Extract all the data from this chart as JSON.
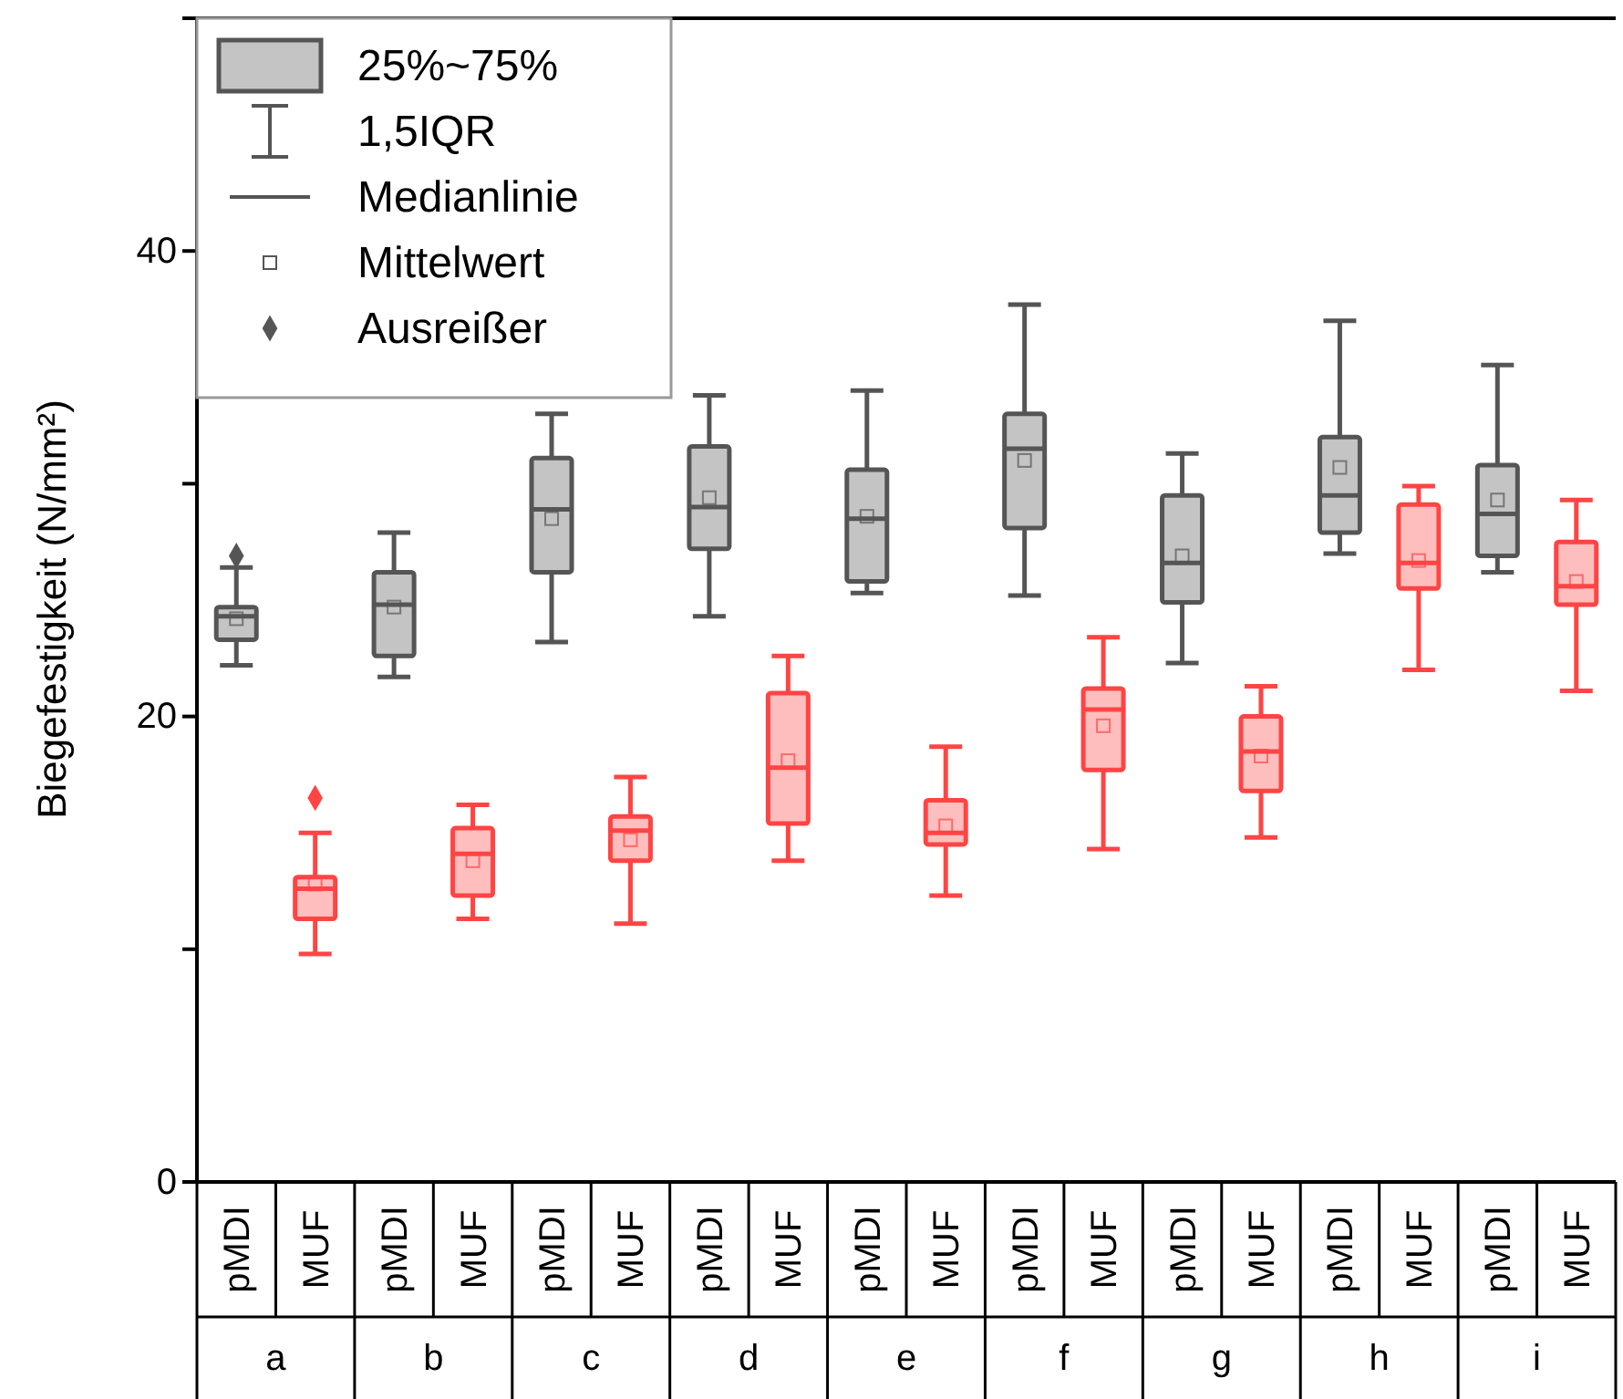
{
  "chart_data": {
    "type": "box",
    "ylabel": "Biegefestigkeit (N/mm²)",
    "ylim": [
      0,
      50
    ],
    "yticks": [
      0,
      {
        "value": 10,
        "label": null
      },
      20,
      {
        "value": 30,
        "label": null
      },
      40
    ],
    "categories": [
      "a",
      "b",
      "c",
      "d",
      "e",
      "f",
      "g",
      "h",
      "i"
    ],
    "legend": "bottom",
    "marker": "diamond",
    "annotations": [
      "25%~75%",
      "1,5IQR",
      "Medianlinie",
      "Mittelwert",
      "Ausreißer"
    ],
    "series": [
      {
        "name": "pMDI",
        "color": "#555555",
        "boxes": [
          {
            "low": 22.2,
            "q1": 23.3,
            "median": 24.3,
            "q3": 24.7,
            "high": 26.4,
            "mean": 24.2,
            "outliers": [
              26.9
            ]
          },
          {
            "low": 21.7,
            "q1": 22.6,
            "median": 24.8,
            "q3": 26.2,
            "high": 27.9,
            "mean": 24.7
          },
          {
            "low": 23.2,
            "q1": 26.2,
            "median": 28.9,
            "q3": 31.1,
            "high": 33.0,
            "mean": 28.5
          },
          {
            "low": 24.3,
            "q1": 27.2,
            "median": 29.0,
            "q3": 31.6,
            "high": 33.8,
            "mean": 29.4
          },
          {
            "low": 25.3,
            "q1": 25.8,
            "median": 28.5,
            "q3": 30.6,
            "high": 34.0,
            "mean": 28.6
          },
          {
            "low": 25.2,
            "q1": 28.1,
            "median": 31.5,
            "q3": 33.0,
            "high": 37.7,
            "mean": 31.0
          },
          {
            "low": 22.3,
            "q1": 24.9,
            "median": 26.6,
            "q3": 29.5,
            "high": 31.3,
            "mean": 26.9
          },
          {
            "low": 27.0,
            "q1": 27.9,
            "median": 29.5,
            "q3": 32.0,
            "high": 37.0,
            "mean": 30.7
          },
          {
            "low": 26.2,
            "q1": 26.9,
            "median": 28.7,
            "q3": 30.8,
            "high": 35.1,
            "mean": 29.3
          }
        ]
      },
      {
        "name": "MUF",
        "color": "#ff4444",
        "boxes": [
          {
            "low": 9.8,
            "q1": 11.3,
            "median": 12.6,
            "q3": 13.1,
            "high": 15.0,
            "mean": 12.8,
            "outliers": [
              16.5
            ]
          },
          {
            "low": 11.3,
            "q1": 12.3,
            "median": 14.1,
            "q3": 15.2,
            "high": 16.2,
            "mean": 13.8
          },
          {
            "low": 11.1,
            "q1": 13.8,
            "median": 15.1,
            "q3": 15.7,
            "high": 17.4,
            "mean": 14.7
          },
          {
            "low": 13.8,
            "q1": 15.4,
            "median": 17.8,
            "q3": 21.0,
            "high": 22.6,
            "mean": 18.1
          },
          {
            "low": 12.3,
            "q1": 14.5,
            "median": 15.0,
            "q3": 16.4,
            "high": 18.7,
            "mean": 15.3
          },
          {
            "low": 14.3,
            "q1": 17.7,
            "median": 20.3,
            "q3": 21.2,
            "high": 23.4,
            "mean": 19.6
          },
          {
            "low": 14.8,
            "q1": 16.8,
            "median": 18.5,
            "q3": 20.0,
            "high": 21.3,
            "mean": 18.3
          },
          {
            "low": 22.0,
            "q1": 25.5,
            "median": 26.6,
            "q3": 29.1,
            "high": 29.9,
            "mean": 26.7
          },
          {
            "low": 21.1,
            "q1": 24.8,
            "median": 25.6,
            "q3": 27.5,
            "high": 29.3,
            "mean": 25.8
          }
        ]
      }
    ]
  }
}
